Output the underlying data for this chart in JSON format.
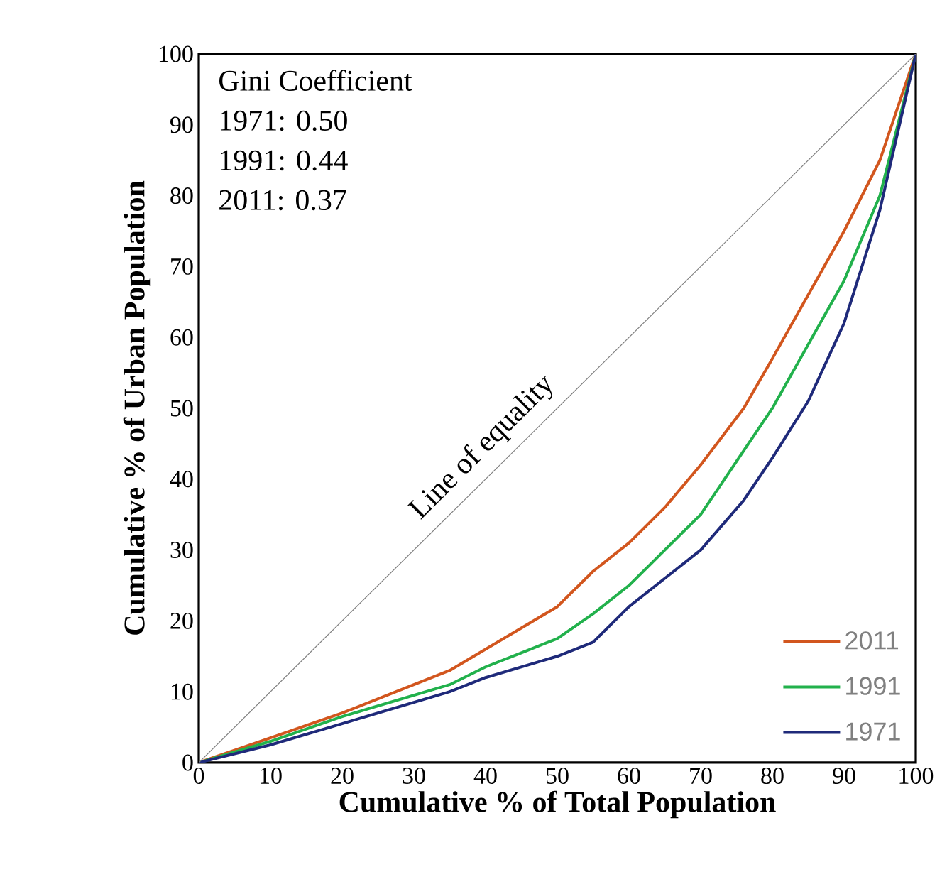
{
  "chart_data": {
    "type": "line",
    "xlabel": "Cumulative % of Total Population",
    "ylabel": "Cumulative % of Urban Population",
    "xlim": [
      0,
      100
    ],
    "ylim": [
      0,
      100
    ],
    "xticks": [
      0,
      10,
      20,
      30,
      40,
      50,
      60,
      70,
      80,
      90,
      100
    ],
    "yticks": [
      0,
      10,
      20,
      30,
      40,
      50,
      60,
      70,
      80,
      90,
      100
    ],
    "grid": false,
    "legend": "bottom right",
    "annotations": [
      "Gini Coefficient",
      "1971: 0.50",
      "1991: 0.44",
      "2011: 0.37",
      {
        "text": "Line of equality",
        "x": 42,
        "y": 42
      }
    ],
    "series": [
      {
        "name": "2011",
        "color": "#d2561e",
        "x": [
          0,
          10,
          20,
          30,
          35,
          40,
          45,
          50,
          55,
          60,
          65,
          70,
          76,
          80,
          85,
          90,
          95,
          100
        ],
        "values": [
          0,
          3.5,
          7,
          11,
          13,
          16,
          19,
          22,
          27,
          31,
          36,
          42,
          50,
          57,
          66,
          75,
          85,
          100
        ]
      },
      {
        "name": "1991",
        "color": "#22b14c",
        "x": [
          0,
          10,
          20,
          30,
          35,
          40,
          45,
          50,
          55,
          60,
          65,
          70,
          76,
          80,
          85,
          90,
          95,
          100
        ],
        "values": [
          0,
          3,
          6.5,
          9.5,
          11,
          13.5,
          15.5,
          17.5,
          21,
          25,
          30,
          35,
          44,
          50,
          59,
          68,
          80,
          100
        ]
      },
      {
        "name": "1971",
        "color": "#1f2a7a",
        "x": [
          0,
          10,
          20,
          30,
          35,
          40,
          45,
          50,
          55,
          60,
          65,
          70,
          76,
          80,
          85,
          90,
          95,
          100
        ],
        "values": [
          0,
          2.5,
          5.5,
          8.5,
          10,
          12,
          13.5,
          15,
          17,
          22,
          26,
          30,
          37,
          43,
          51,
          62,
          78,
          100
        ]
      },
      {
        "color": "#7f7f7f",
        "x": [
          0,
          100
        ],
        "values": [
          0,
          100
        ]
      }
    ]
  }
}
